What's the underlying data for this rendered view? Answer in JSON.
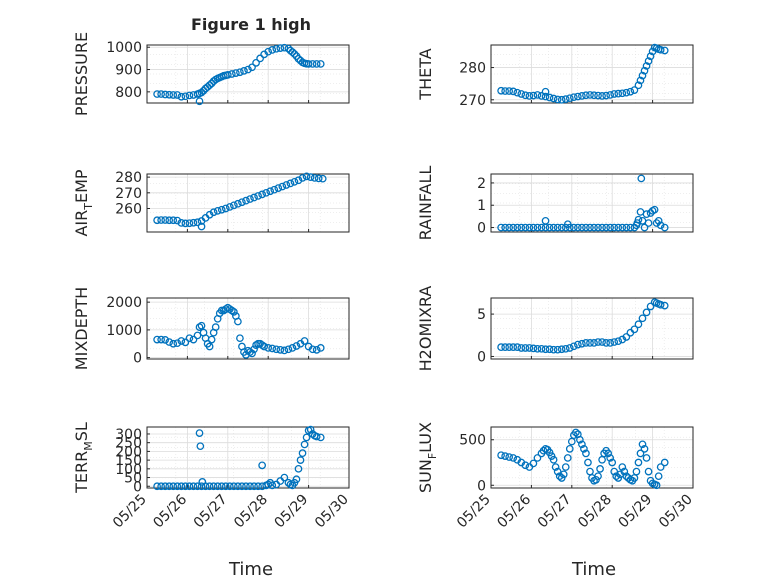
{
  "figure": {
    "title": "Figure 1 high",
    "xlabel": "Time",
    "marker_color": "#0072BD",
    "axis_color": "#262626",
    "grid_color": "#dcdcdc"
  },
  "chart_data": [
    {
      "type": "scatter",
      "id": "pressure",
      "ylabel": {
        "main": "PRESSURE",
        "sub": ""
      },
      "ylim": [
        750,
        1010
      ],
      "yticks": [
        800,
        900,
        1000
      ],
      "ytick_labels": [
        "800",
        "900",
        "1000"
      ],
      "xlim": [
        0,
        5
      ],
      "xticks": [
        0,
        1,
        2,
        3,
        4,
        5
      ],
      "xtick_labels": [
        "05/25",
        "05/26",
        "05/27",
        "05/28",
        "05/29",
        "05/30"
      ],
      "x": [
        0.25,
        0.35,
        0.45,
        0.55,
        0.65,
        0.75,
        0.85,
        0.95,
        1.05,
        1.15,
        1.25,
        1.3,
        1.35,
        1.4,
        1.45,
        1.5,
        1.55,
        1.6,
        1.65,
        1.7,
        1.75,
        1.8,
        1.85,
        1.9,
        1.95,
        2.0,
        2.1,
        2.2,
        2.3,
        2.4,
        2.5,
        2.6,
        2.7,
        2.8,
        2.9,
        3.0,
        3.1,
        3.2,
        3.3,
        3.4,
        3.5,
        3.55,
        3.6,
        3.65,
        3.7,
        3.75,
        3.8,
        3.85,
        3.9,
        3.95,
        4.0,
        4.1,
        4.2,
        4.3,
        1.3
      ],
      "y": [
        790,
        790,
        788,
        787,
        786,
        786,
        778,
        780,
        784,
        786,
        790,
        793,
        797,
        805,
        815,
        822,
        830,
        838,
        848,
        855,
        860,
        864,
        868,
        872,
        874,
        876,
        880,
        884,
        888,
        894,
        900,
        910,
        930,
        950,
        968,
        980,
        988,
        993,
        996,
        998,
        994,
        985,
        978,
        970,
        960,
        948,
        940,
        932,
        928,
        926,
        925,
        925,
        925,
        925,
        758
      ]
    },
    {
      "type": "scatter",
      "id": "theta",
      "ylabel": {
        "main": "THETA",
        "sub": ""
      },
      "ylim": [
        269,
        287
      ],
      "yticks": [
        270,
        280
      ],
      "ytick_labels": [
        "270",
        "280"
      ],
      "xlim": [
        0,
        5
      ],
      "xticks": [
        0,
        1,
        2,
        3,
        4,
        5
      ],
      "xtick_labels": [
        "05/25",
        "05/26",
        "05/27",
        "05/28",
        "05/29",
        "05/30"
      ],
      "x": [
        0.25,
        0.35,
        0.45,
        0.55,
        0.65,
        0.75,
        0.85,
        0.95,
        1.05,
        1.15,
        1.25,
        1.35,
        1.45,
        1.55,
        1.65,
        1.75,
        1.85,
        1.95,
        2.05,
        2.15,
        2.25,
        2.35,
        2.45,
        2.55,
        2.65,
        2.75,
        2.85,
        2.95,
        3.05,
        3.15,
        3.25,
        3.35,
        3.45,
        3.55,
        3.65,
        3.7,
        3.75,
        3.8,
        3.85,
        3.9,
        3.95,
        4.0,
        4.05,
        4.1,
        4.15,
        4.2,
        4.3,
        1.35
      ],
      "y": [
        272.8,
        272.7,
        272.7,
        272.6,
        272.2,
        271.8,
        271.4,
        271.2,
        271.3,
        271.5,
        271.2,
        271.0,
        270.7,
        270.4,
        270.1,
        270.0,
        270.2,
        270.5,
        270.8,
        271.0,
        271.2,
        271.4,
        271.5,
        271.4,
        271.3,
        271.2,
        271.3,
        271.5,
        271.8,
        271.9,
        272.0,
        272.2,
        272.5,
        273.0,
        274.5,
        276.0,
        277.5,
        279.0,
        280.5,
        282.0,
        283.5,
        285.0,
        286.2,
        286.0,
        285.7,
        285.5,
        285.3,
        272.5
      ]
    },
    {
      "type": "scatter",
      "id": "air-temp",
      "ylabel": {
        "main": "AIR",
        "sub": "T",
        "rest": "EMP"
      },
      "ylim": [
        245,
        282
      ],
      "yticks": [
        260,
        270,
        280
      ],
      "ytick_labels": [
        "260",
        "270",
        "280"
      ],
      "xlim": [
        0,
        5
      ],
      "xticks": [
        0,
        1,
        2,
        3,
        4,
        5
      ],
      "xtick_labels": [
        "05/25",
        "05/26",
        "05/27",
        "05/28",
        "05/29",
        "05/30"
      ],
      "x": [
        0.25,
        0.35,
        0.45,
        0.55,
        0.65,
        0.75,
        0.85,
        0.95,
        1.05,
        1.15,
        1.25,
        1.35,
        1.45,
        1.55,
        1.65,
        1.75,
        1.85,
        1.95,
        2.05,
        2.15,
        2.25,
        2.35,
        2.45,
        2.55,
        2.65,
        2.75,
        2.85,
        2.95,
        3.05,
        3.15,
        3.25,
        3.35,
        3.45,
        3.55,
        3.65,
        3.75,
        3.85,
        3.95,
        4.05,
        4.15,
        4.25,
        4.35,
        1.35
      ],
      "y": [
        252.5,
        252.6,
        252.6,
        252.5,
        252.5,
        252.3,
        250.8,
        250.5,
        250.6,
        250.9,
        251.2,
        252.0,
        254.0,
        256.0,
        257.6,
        258.5,
        259.2,
        260.0,
        261.0,
        262.0,
        263.0,
        264.0,
        265.0,
        266.0,
        267.0,
        268.0,
        269.0,
        270.0,
        271.0,
        272.0,
        273.0,
        274.0,
        275.0,
        276.0,
        277.0,
        278.0,
        279.5,
        280.5,
        280.0,
        279.5,
        279.2,
        279.0,
        248.5
      ]
    },
    {
      "type": "scatter",
      "id": "rainfall",
      "ylabel": {
        "main": "RAINFALL",
        "sub": ""
      },
      "ylim": [
        -0.2,
        2.4
      ],
      "yticks": [
        0,
        1,
        2
      ],
      "ytick_labels": [
        "0",
        "1",
        "2"
      ],
      "xlim": [
        0,
        5
      ],
      "xticks": [
        0,
        1,
        2,
        3,
        4,
        5
      ],
      "xtick_labels": [
        "05/25",
        "05/26",
        "05/27",
        "05/28",
        "05/29",
        "05/30"
      ],
      "x": [
        0.25,
        0.35,
        0.45,
        0.55,
        0.65,
        0.75,
        0.85,
        0.95,
        1.05,
        1.15,
        1.25,
        1.35,
        1.45,
        1.55,
        1.65,
        1.75,
        1.85,
        1.95,
        2.05,
        2.15,
        2.25,
        2.35,
        2.45,
        2.55,
        2.65,
        2.75,
        2.85,
        2.95,
        3.05,
        3.15,
        3.25,
        3.35,
        3.45,
        3.55,
        3.6,
        3.65,
        3.7,
        3.75,
        3.8,
        3.85,
        3.9,
        3.95,
        4.0,
        4.05,
        4.1,
        4.15,
        4.2,
        4.3,
        1.35,
        1.9,
        3.72,
        3.62
      ],
      "y": [
        0,
        0,
        0,
        0,
        0,
        0,
        0,
        0,
        0,
        0,
        0,
        0,
        0,
        0,
        0,
        0,
        0,
        0,
        0,
        0,
        0,
        0,
        0,
        0,
        0,
        0,
        0,
        0,
        0,
        0,
        0,
        0,
        0,
        0,
        0.1,
        0.35,
        0.7,
        0.3,
        0,
        0.6,
        0.2,
        0.65,
        0.75,
        0.8,
        0.2,
        0.3,
        0.1,
        0,
        0.3,
        0.15,
        2.2,
        0.2
      ]
    },
    {
      "type": "scatter",
      "id": "mixdepth",
      "ylabel": {
        "main": "MIXDEPTH",
        "sub": ""
      },
      "ylim": [
        -50,
        2150
      ],
      "yticks": [
        0,
        1000,
        2000
      ],
      "ytick_labels": [
        "0",
        "1000",
        "2000"
      ],
      "xlim": [
        0,
        5
      ],
      "xticks": [
        0,
        1,
        2,
        3,
        4,
        5
      ],
      "xtick_labels": [
        "05/25",
        "05/26",
        "05/27",
        "05/28",
        "05/29",
        "05/30"
      ],
      "x": [
        0.25,
        0.35,
        0.45,
        0.55,
        0.65,
        0.75,
        0.85,
        0.95,
        1.05,
        1.15,
        1.25,
        1.3,
        1.35,
        1.4,
        1.45,
        1.5,
        1.55,
        1.6,
        1.65,
        1.7,
        1.75,
        1.8,
        1.85,
        1.9,
        1.95,
        2.0,
        2.05,
        2.1,
        2.15,
        2.2,
        2.25,
        2.3,
        2.35,
        2.4,
        2.45,
        2.5,
        2.55,
        2.6,
        2.65,
        2.7,
        2.75,
        2.8,
        2.85,
        2.9,
        3.0,
        3.1,
        3.2,
        3.3,
        3.4,
        3.5,
        3.6,
        3.7,
        3.8,
        3.9,
        4.0,
        4.1,
        4.2,
        4.3
      ],
      "y": [
        650,
        650,
        640,
        560,
        500,
        520,
        600,
        550,
        700,
        650,
        800,
        1100,
        1150,
        900,
        700,
        500,
        400,
        650,
        900,
        1100,
        1400,
        1600,
        1700,
        1700,
        1750,
        1800,
        1750,
        1700,
        1650,
        1500,
        1300,
        700,
        400,
        200,
        100,
        250,
        200,
        150,
        300,
        450,
        500,
        500,
        450,
        400,
        350,
        330,
        300,
        280,
        260,
        300,
        350,
        420,
        500,
        600,
        400,
        300,
        280,
        350
      ]
    },
    {
      "type": "scatter",
      "id": "h2omixra",
      "ylabel": {
        "main": "H2OMIXRA",
        "sub": ""
      },
      "ylim": [
        -0.3,
        6.9
      ],
      "yticks": [
        0,
        5
      ],
      "ytick_labels": [
        "0",
        "5"
      ],
      "xlim": [
        0,
        5
      ],
      "xticks": [
        0,
        1,
        2,
        3,
        4,
        5
      ],
      "xtick_labels": [
        "05/25",
        "05/26",
        "05/27",
        "05/28",
        "05/29",
        "05/30"
      ],
      "x": [
        0.25,
        0.35,
        0.45,
        0.55,
        0.65,
        0.75,
        0.85,
        0.95,
        1.05,
        1.15,
        1.25,
        1.35,
        1.45,
        1.55,
        1.65,
        1.75,
        1.85,
        1.95,
        2.05,
        2.15,
        2.25,
        2.35,
        2.45,
        2.55,
        2.65,
        2.75,
        2.85,
        2.95,
        3.05,
        3.15,
        3.25,
        3.35,
        3.45,
        3.55,
        3.65,
        3.75,
        3.85,
        3.95,
        4.05,
        4.1,
        4.15,
        4.2,
        4.3
      ],
      "y": [
        1.1,
        1.1,
        1.1,
        1.1,
        1.1,
        1.0,
        1.0,
        1.0,
        0.95,
        0.9,
        0.9,
        0.85,
        0.85,
        0.8,
        0.8,
        0.85,
        0.9,
        1.0,
        1.2,
        1.4,
        1.5,
        1.6,
        1.6,
        1.6,
        1.7,
        1.7,
        1.6,
        1.6,
        1.7,
        1.8,
        2.0,
        2.3,
        2.8,
        3.2,
        3.8,
        4.5,
        5.2,
        5.9,
        6.4,
        6.3,
        6.2,
        6.1,
        6.0
      ]
    },
    {
      "type": "scatter",
      "id": "terr-msl",
      "ylabel": {
        "main": "TERR",
        "sub": "M",
        "rest": "SL"
      },
      "ylim": [
        -10,
        340
      ],
      "yticks": [
        0,
        50,
        100,
        150,
        200,
        250,
        300
      ],
      "ytick_labels": [
        "0",
        "50",
        "100",
        "150",
        "200",
        "250",
        "300"
      ],
      "xlim": [
        0,
        5
      ],
      "xticks": [
        0,
        1,
        2,
        3,
        4,
        5
      ],
      "xtick_labels": [
        "05/25",
        "05/26",
        "05/27",
        "05/28",
        "05/29",
        "05/30"
      ],
      "x": [
        0.25,
        0.35,
        0.45,
        0.55,
        0.65,
        0.75,
        0.85,
        0.95,
        1.05,
        1.15,
        1.25,
        1.35,
        1.45,
        1.55,
        1.65,
        1.75,
        1.85,
        1.95,
        2.05,
        2.15,
        2.25,
        2.35,
        2.45,
        2.55,
        2.65,
        2.75,
        2.85,
        2.95,
        3.0,
        3.05,
        3.1,
        3.2,
        3.3,
        3.4,
        3.5,
        3.55,
        3.6,
        3.65,
        3.7,
        3.75,
        3.8,
        3.85,
        3.9,
        3.95,
        4.0,
        4.05,
        4.1,
        4.15,
        4.2,
        4.3,
        1.3,
        1.32,
        1.37,
        2.85
      ],
      "y": [
        0,
        0,
        0,
        0,
        0,
        0,
        0,
        0,
        0,
        0,
        0,
        0,
        0,
        0,
        0,
        0,
        0,
        0,
        0,
        0,
        0,
        0,
        0,
        0,
        0,
        0,
        0,
        5,
        10,
        20,
        5,
        10,
        30,
        50,
        20,
        10,
        5,
        20,
        40,
        100,
        150,
        190,
        240,
        280,
        320,
        325,
        300,
        290,
        285,
        280,
        305,
        230,
        25,
        120
      ]
    },
    {
      "type": "scatter",
      "id": "sun-flux",
      "ylabel": {
        "main": "SUN",
        "sub": "F",
        "rest": "LUX"
      },
      "ylim": [
        -30,
        640
      ],
      "yticks": [
        0,
        500
      ],
      "ytick_labels": [
        "0",
        "500"
      ],
      "xlim": [
        0,
        5
      ],
      "xticks": [
        0,
        1,
        2,
        3,
        4,
        5
      ],
      "xtick_labels": [
        "05/25",
        "05/26",
        "05/27",
        "05/28",
        "05/29",
        "05/30"
      ],
      "x": [
        0.25,
        0.35,
        0.45,
        0.55,
        0.65,
        0.75,
        0.85,
        0.95,
        1.05,
        1.15,
        1.25,
        1.3,
        1.35,
        1.4,
        1.45,
        1.5,
        1.55,
        1.6,
        1.65,
        1.7,
        1.75,
        1.8,
        1.85,
        1.9,
        1.95,
        2.0,
        2.05,
        2.1,
        2.15,
        2.2,
        2.25,
        2.3,
        2.35,
        2.4,
        2.45,
        2.5,
        2.55,
        2.6,
        2.65,
        2.7,
        2.75,
        2.8,
        2.85,
        2.9,
        2.95,
        3.0,
        3.05,
        3.1,
        3.15,
        3.2,
        3.25,
        3.3,
        3.35,
        3.4,
        3.45,
        3.5,
        3.55,
        3.6,
        3.65,
        3.7,
        3.75,
        3.8,
        3.85,
        3.9,
        3.95,
        4.0,
        4.05,
        4.1,
        4.15,
        4.2,
        4.3
      ],
      "y": [
        330,
        320,
        310,
        300,
        280,
        250,
        220,
        200,
        240,
        300,
        350,
        380,
        400,
        390,
        360,
        320,
        280,
        200,
        150,
        100,
        80,
        120,
        200,
        300,
        400,
        480,
        550,
        580,
        560,
        500,
        450,
        400,
        350,
        250,
        150,
        80,
        50,
        60,
        100,
        180,
        280,
        350,
        380,
        350,
        300,
        250,
        150,
        100,
        80,
        120,
        200,
        150,
        100,
        80,
        60,
        50,
        80,
        150,
        250,
        350,
        450,
        400,
        300,
        150,
        50,
        20,
        10,
        0,
        100,
        200,
        250
      ]
    }
  ]
}
